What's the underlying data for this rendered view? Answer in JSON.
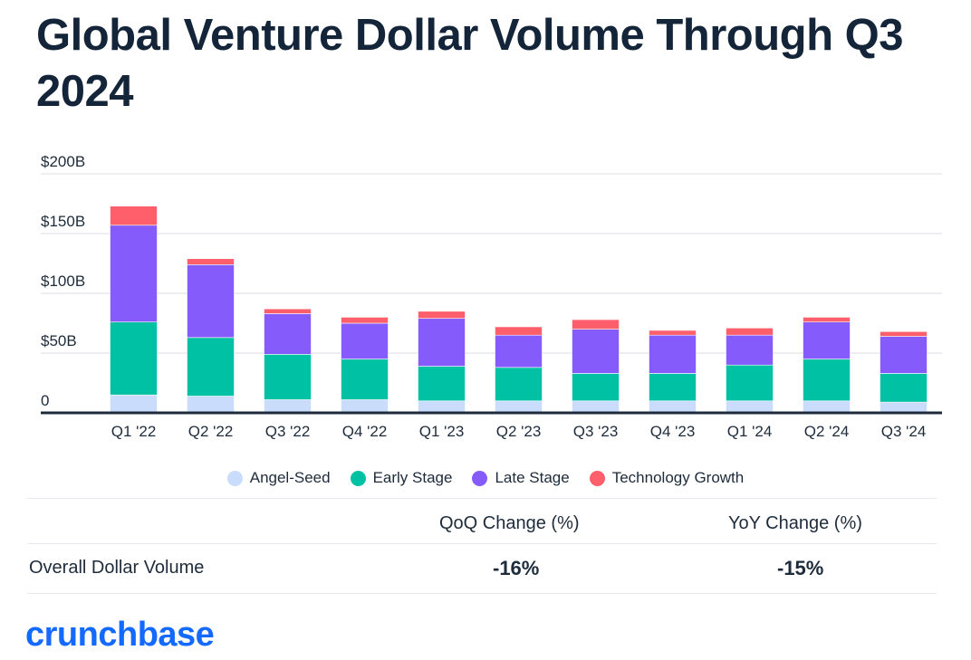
{
  "title": "Global Venture Dollar Volume Through Q3 2024",
  "chart_data": {
    "type": "bar",
    "stacked": true,
    "title": "Global Venture Dollar Volume Through Q3 2024",
    "xlabel": "",
    "ylabel": "",
    "ylim": [
      0,
      200
    ],
    "yticks": [
      {
        "value": 0,
        "label": "0"
      },
      {
        "value": 50,
        "label": "$50B"
      },
      {
        "value": 100,
        "label": "$100B"
      },
      {
        "value": 150,
        "label": "$150B"
      },
      {
        "value": 200,
        "label": "$200B"
      }
    ],
    "grid": true,
    "legend_position": "bottom",
    "categories": [
      "Q1 '22",
      "Q2 '22",
      "Q3 '22",
      "Q4 '22",
      "Q1 '23",
      "Q2 '23",
      "Q3 '23",
      "Q4 '23",
      "Q1 '24",
      "Q2 '24",
      "Q3 '24"
    ],
    "series": [
      {
        "name": "Angel-Seed",
        "color": "#c9dcfb",
        "values": [
          15,
          14,
          11,
          11,
          10,
          10,
          10,
          10,
          10,
          10,
          9
        ]
      },
      {
        "name": "Early Stage",
        "color": "#00c1a3",
        "values": [
          61,
          49,
          38,
          34,
          29,
          28,
          23,
          23,
          30,
          35,
          24
        ]
      },
      {
        "name": "Late Stage",
        "color": "#865bfb",
        "values": [
          81,
          61,
          34,
          30,
          40,
          27,
          37,
          32,
          25,
          31,
          31
        ]
      },
      {
        "name": "Technology Growth",
        "color": "#ff5f6a",
        "values": [
          16,
          5,
          4,
          5,
          6,
          7,
          8,
          4,
          6,
          4,
          4
        ]
      }
    ]
  },
  "table": {
    "headers": [
      "QoQ Change (%)",
      "YoY Change (%)"
    ],
    "row_label": "Overall Dollar Volume",
    "values": [
      "-16%",
      "-15%"
    ]
  },
  "logo": "crunchbase"
}
